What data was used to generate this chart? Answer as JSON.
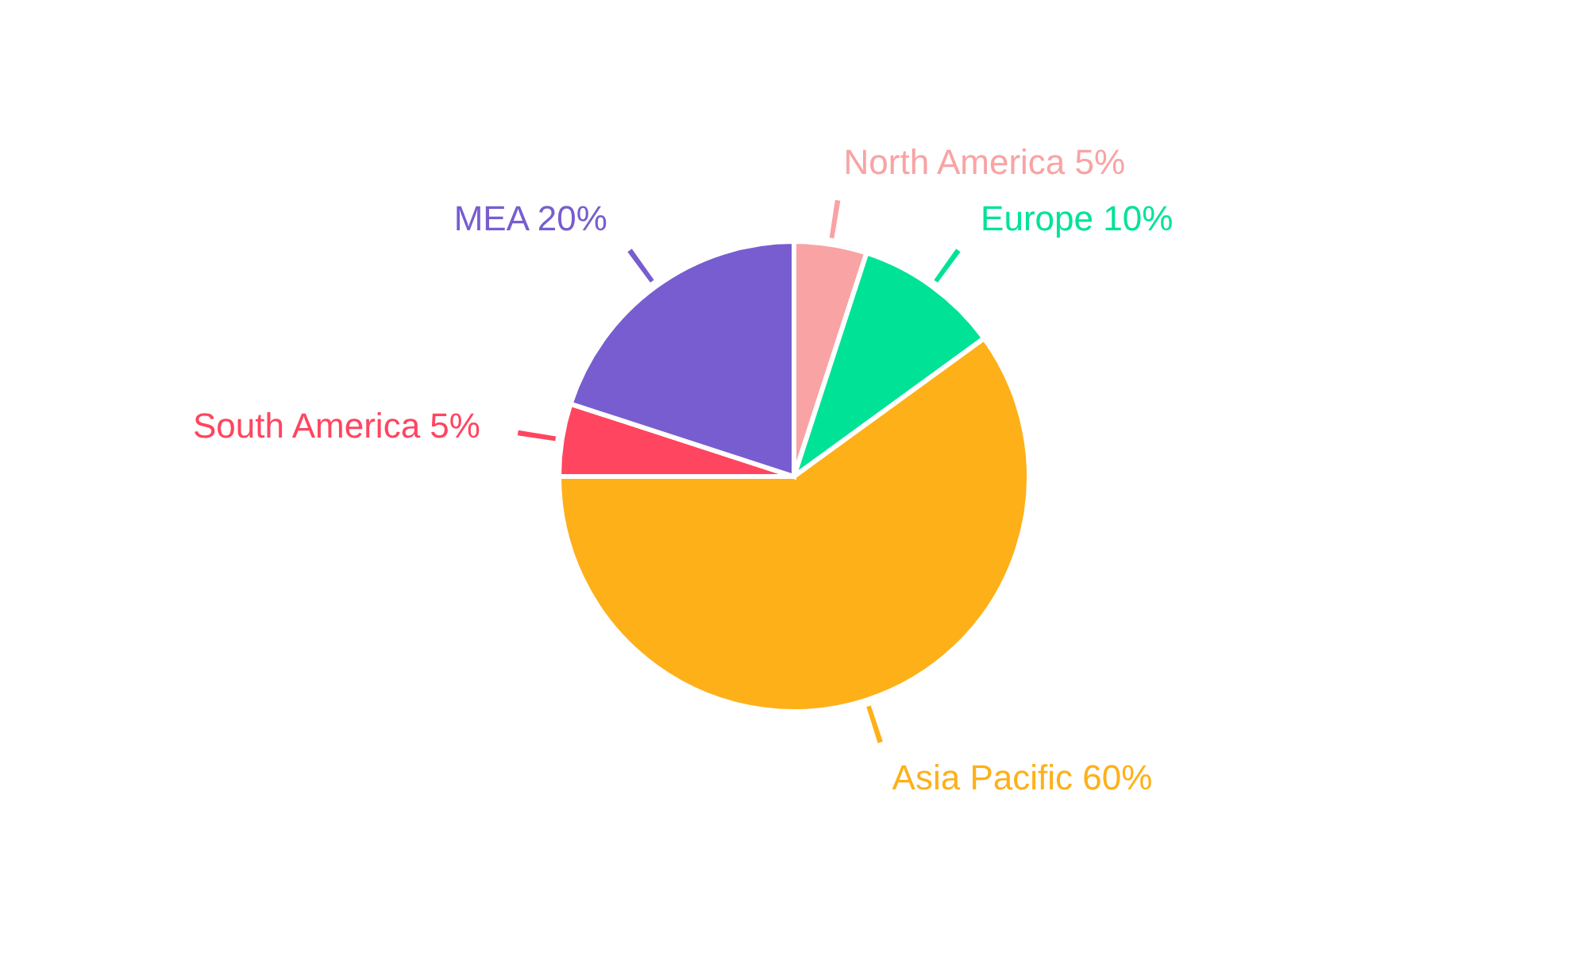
{
  "chart_data": {
    "type": "pie",
    "categories": [
      "North America",
      "Europe",
      "Asia Pacific",
      "South America",
      "MEA"
    ],
    "values": [
      5,
      10,
      60,
      5,
      20
    ],
    "colors": [
      "#f9a3a4",
      "#00e396",
      "#feb019",
      "#ff4560",
      "#775dd0"
    ],
    "value_labels": [
      "5%",
      "10%",
      "60%",
      "5%",
      "20%"
    ]
  }
}
